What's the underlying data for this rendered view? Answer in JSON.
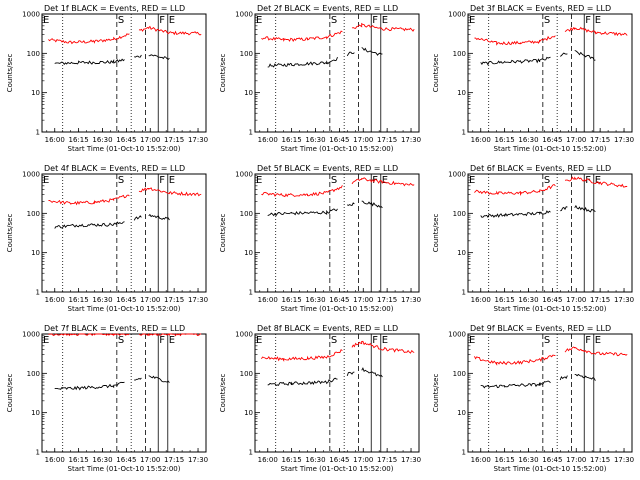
{
  "chart_data": {
    "type": "line",
    "yscale": "log",
    "ylim": [
      1,
      1000
    ],
    "xlim": [
      "15:52",
      "17:35"
    ],
    "xticks": [
      "16:00",
      "16:15",
      "16:30",
      "16:45",
      "17:00",
      "17:15",
      "17:30"
    ],
    "yticks": [
      "1",
      "10",
      "100",
      "1000"
    ],
    "ylabel": "Counts/sec",
    "xlabel": "Start Time (01-Oct-10 15:52:00)",
    "colors": {
      "events": "#000000",
      "lld": "#ff0000"
    },
    "panels": [
      {
        "title": "Det 1f BLACK = Events, RED = LLD",
        "markers": [
          {
            "label": "E",
            "time": "15:52"
          },
          {
            "label": "S",
            "time": "16:39"
          },
          {
            "label": "F",
            "time": "17:05"
          },
          {
            "label": "E",
            "time": "17:11"
          }
        ],
        "dotted_lines": [
          "16:05",
          "16:48"
        ],
        "dashed_lines": [
          "16:39",
          "16:57"
        ],
        "solid_lines": [
          "17:05",
          "17:11"
        ],
        "lld": [
          {
            "t": "15:56",
            "v": 220
          },
          {
            "t": "16:10",
            "v": 190
          },
          {
            "t": "16:25",
            "v": 200
          },
          {
            "t": "16:37",
            "v": 230
          },
          {
            "t": "16:59",
            "v": 450
          },
          {
            "t": "17:12",
            "v": 330
          },
          {
            "t": "17:32",
            "v": 320
          }
        ],
        "events": [
          {
            "t": "16:00",
            "v": 55
          },
          {
            "t": "16:15",
            "v": 58
          },
          {
            "t": "16:37",
            "v": 60
          },
          {
            "t": "16:59",
            "v": 95
          },
          {
            "t": "17:12",
            "v": 70
          }
        ]
      },
      {
        "title": "Det 2f BLACK = Events, RED = LLD",
        "markers": [
          {
            "label": "E",
            "time": "15:52"
          },
          {
            "label": "S",
            "time": "16:39"
          },
          {
            "label": "F",
            "time": "17:05"
          },
          {
            "label": "E",
            "time": "17:11"
          }
        ],
        "dotted_lines": [
          "16:05",
          "16:48"
        ],
        "dashed_lines": [
          "16:39",
          "16:57"
        ],
        "solid_lines": [
          "17:05",
          "17:11"
        ],
        "lld": [
          {
            "t": "15:56",
            "v": 250
          },
          {
            "t": "16:10",
            "v": 220
          },
          {
            "t": "16:25",
            "v": 230
          },
          {
            "t": "16:37",
            "v": 260
          },
          {
            "t": "16:59",
            "v": 520
          },
          {
            "t": "17:12",
            "v": 420
          },
          {
            "t": "17:32",
            "v": 400
          }
        ],
        "events": [
          {
            "t": "16:00",
            "v": 48
          },
          {
            "t": "16:15",
            "v": 52
          },
          {
            "t": "16:37",
            "v": 58
          },
          {
            "t": "16:59",
            "v": 130
          },
          {
            "t": "17:12",
            "v": 90
          }
        ]
      },
      {
        "title": "Det 3f BLACK = Events, RED = LLD",
        "markers": [
          {
            "label": "E",
            "time": "15:52"
          },
          {
            "label": "S",
            "time": "16:39"
          },
          {
            "label": "F",
            "time": "17:05"
          },
          {
            "label": "E",
            "time": "17:11"
          }
        ],
        "dotted_lines": [
          "16:05",
          "16:48"
        ],
        "dashed_lines": [
          "16:39",
          "16:57"
        ],
        "solid_lines": [
          "17:05",
          "17:11"
        ],
        "lld": [
          {
            "t": "15:56",
            "v": 250
          },
          {
            "t": "16:10",
            "v": 180
          },
          {
            "t": "16:25",
            "v": 185
          },
          {
            "t": "16:37",
            "v": 200
          },
          {
            "t": "16:59",
            "v": 450
          },
          {
            "t": "17:12",
            "v": 340
          },
          {
            "t": "17:32",
            "v": 300
          }
        ],
        "events": [
          {
            "t": "16:00",
            "v": 55
          },
          {
            "t": "16:15",
            "v": 60
          },
          {
            "t": "16:37",
            "v": 65
          },
          {
            "t": "16:59",
            "v": 110
          },
          {
            "t": "17:12",
            "v": 70
          }
        ]
      },
      {
        "title": "Det 4f BLACK = Events, RED = LLD",
        "markers": [
          {
            "label": "E",
            "time": "15:52"
          },
          {
            "label": "S",
            "time": "16:39"
          },
          {
            "label": "F",
            "time": "17:05"
          },
          {
            "label": "E",
            "time": "17:11"
          }
        ],
        "dotted_lines": [
          "16:05",
          "16:48"
        ],
        "dashed_lines": [
          "16:39",
          "16:57"
        ],
        "solid_lines": [
          "17:05",
          "17:11"
        ],
        "lld": [
          {
            "t": "15:56",
            "v": 210
          },
          {
            "t": "16:10",
            "v": 180
          },
          {
            "t": "16:25",
            "v": 190
          },
          {
            "t": "16:37",
            "v": 220
          },
          {
            "t": "16:59",
            "v": 440
          },
          {
            "t": "17:12",
            "v": 330
          },
          {
            "t": "17:32",
            "v": 300
          }
        ],
        "events": [
          {
            "t": "16:00",
            "v": 45
          },
          {
            "t": "16:15",
            "v": 50
          },
          {
            "t": "16:37",
            "v": 52
          },
          {
            "t": "16:59",
            "v": 90
          },
          {
            "t": "17:12",
            "v": 70
          }
        ]
      },
      {
        "title": "Det 5f BLACK = Events, RED = LLD",
        "markers": [
          {
            "label": "E",
            "time": "15:52"
          },
          {
            "label": "S",
            "time": "16:39"
          },
          {
            "label": "F",
            "time": "17:05"
          },
          {
            "label": "E",
            "time": "17:11"
          }
        ],
        "dotted_lines": [
          "16:05",
          "16:48"
        ],
        "dashed_lines": [
          "16:39",
          "16:57"
        ],
        "solid_lines": [
          "17:05",
          "17:11"
        ],
        "lld": [
          {
            "t": "15:56",
            "v": 320
          },
          {
            "t": "16:10",
            "v": 290
          },
          {
            "t": "16:25",
            "v": 300
          },
          {
            "t": "16:37",
            "v": 330
          },
          {
            "t": "16:59",
            "v": 750
          },
          {
            "t": "17:12",
            "v": 620
          },
          {
            "t": "17:32",
            "v": 520
          }
        ],
        "events": [
          {
            "t": "16:00",
            "v": 95
          },
          {
            "t": "16:15",
            "v": 100
          },
          {
            "t": "16:37",
            "v": 105
          },
          {
            "t": "16:59",
            "v": 200
          },
          {
            "t": "17:12",
            "v": 150
          }
        ]
      },
      {
        "title": "Det 6f BLACK = Events, RED = LLD",
        "markers": [
          {
            "label": "E",
            "time": "15:52"
          },
          {
            "label": "S",
            "time": "16:39"
          },
          {
            "label": "F",
            "time": "17:05"
          },
          {
            "label": "E",
            "time": "17:11"
          }
        ],
        "dotted_lines": [
          "16:05",
          "16:48"
        ],
        "dashed_lines": [
          "16:39",
          "16:57"
        ],
        "solid_lines": [
          "17:05",
          "17:11"
        ],
        "lld": [
          {
            "t": "15:56",
            "v": 360
          },
          {
            "t": "16:10",
            "v": 320
          },
          {
            "t": "16:25",
            "v": 330
          },
          {
            "t": "16:37",
            "v": 360
          },
          {
            "t": "16:59",
            "v": 800
          },
          {
            "t": "17:12",
            "v": 620
          },
          {
            "t": "17:32",
            "v": 480
          }
        ],
        "events": [
          {
            "t": "16:00",
            "v": 85
          },
          {
            "t": "16:15",
            "v": 90
          },
          {
            "t": "16:37",
            "v": 100
          },
          {
            "t": "16:59",
            "v": 150
          },
          {
            "t": "17:12",
            "v": 110
          }
        ]
      },
      {
        "title": "Det 7f BLACK = Events, RED = LLD",
        "markers": [
          {
            "label": "E",
            "time": "15:52"
          },
          {
            "label": "S",
            "time": "16:39"
          },
          {
            "label": "F",
            "time": "17:05"
          },
          {
            "label": "E",
            "time": "17:11"
          }
        ],
        "dotted_lines": [
          "16:05",
          "16:48"
        ],
        "dashed_lines": [
          "16:39",
          "16:57"
        ],
        "solid_lines": [
          "17:05",
          "17:11"
        ],
        "lld": [
          {
            "t": "15:56",
            "v": 1000
          },
          {
            "t": "16:10",
            "v": 1000
          },
          {
            "t": "16:25",
            "v": 1000
          },
          {
            "t": "16:37",
            "v": 1000
          },
          {
            "t": "16:59",
            "v": 1000
          },
          {
            "t": "17:12",
            "v": 1000
          },
          {
            "t": "17:32",
            "v": 1000
          }
        ],
        "events": [
          {
            "t": "16:00",
            "v": 40
          },
          {
            "t": "16:15",
            "v": 42
          },
          {
            "t": "16:37",
            "v": 48
          },
          {
            "t": "16:59",
            "v": 85
          },
          {
            "t": "17:12",
            "v": 60
          }
        ]
      },
      {
        "title": "Det 8f BLACK = Events, RED = LLD",
        "markers": [
          {
            "label": "E",
            "time": "15:52"
          },
          {
            "label": "S",
            "time": "16:39"
          },
          {
            "label": "F",
            "time": "17:05"
          },
          {
            "label": "E",
            "time": "17:11"
          }
        ],
        "dotted_lines": [
          "16:05",
          "16:48"
        ],
        "dashed_lines": [
          "16:39",
          "16:57"
        ],
        "solid_lines": [
          "17:05",
          "17:11"
        ],
        "lld": [
          {
            "t": "15:56",
            "v": 250
          },
          {
            "t": "16:10",
            "v": 230
          },
          {
            "t": "16:25",
            "v": 240
          },
          {
            "t": "16:37",
            "v": 260
          },
          {
            "t": "16:59",
            "v": 620
          },
          {
            "t": "17:12",
            "v": 420
          },
          {
            "t": "17:32",
            "v": 340
          }
        ],
        "events": [
          {
            "t": "16:00",
            "v": 52
          },
          {
            "t": "16:15",
            "v": 55
          },
          {
            "t": "16:37",
            "v": 60
          },
          {
            "t": "16:59",
            "v": 130
          },
          {
            "t": "17:12",
            "v": 80
          }
        ]
      },
      {
        "title": "Det 9f BLACK = Events, RED = LLD",
        "markers": [
          {
            "label": "E",
            "time": "15:52"
          },
          {
            "label": "S",
            "time": "16:39"
          },
          {
            "label": "F",
            "time": "17:05"
          },
          {
            "label": "E",
            "time": "17:11"
          }
        ],
        "dotted_lines": [
          "16:05",
          "16:48"
        ],
        "dashed_lines": [
          "16:39",
          "16:57"
        ],
        "solid_lines": [
          "17:05",
          "17:11"
        ],
        "lld": [
          {
            "t": "15:56",
            "v": 250
          },
          {
            "t": "16:10",
            "v": 180
          },
          {
            "t": "16:25",
            "v": 190
          },
          {
            "t": "16:37",
            "v": 220
          },
          {
            "t": "16:59",
            "v": 450
          },
          {
            "t": "17:12",
            "v": 320
          },
          {
            "t": "17:32",
            "v": 300
          }
        ],
        "events": [
          {
            "t": "16:00",
            "v": 45
          },
          {
            "t": "16:15",
            "v": 48
          },
          {
            "t": "16:37",
            "v": 52
          },
          {
            "t": "16:59",
            "v": 95
          },
          {
            "t": "17:12",
            "v": 70
          }
        ]
      }
    ]
  }
}
